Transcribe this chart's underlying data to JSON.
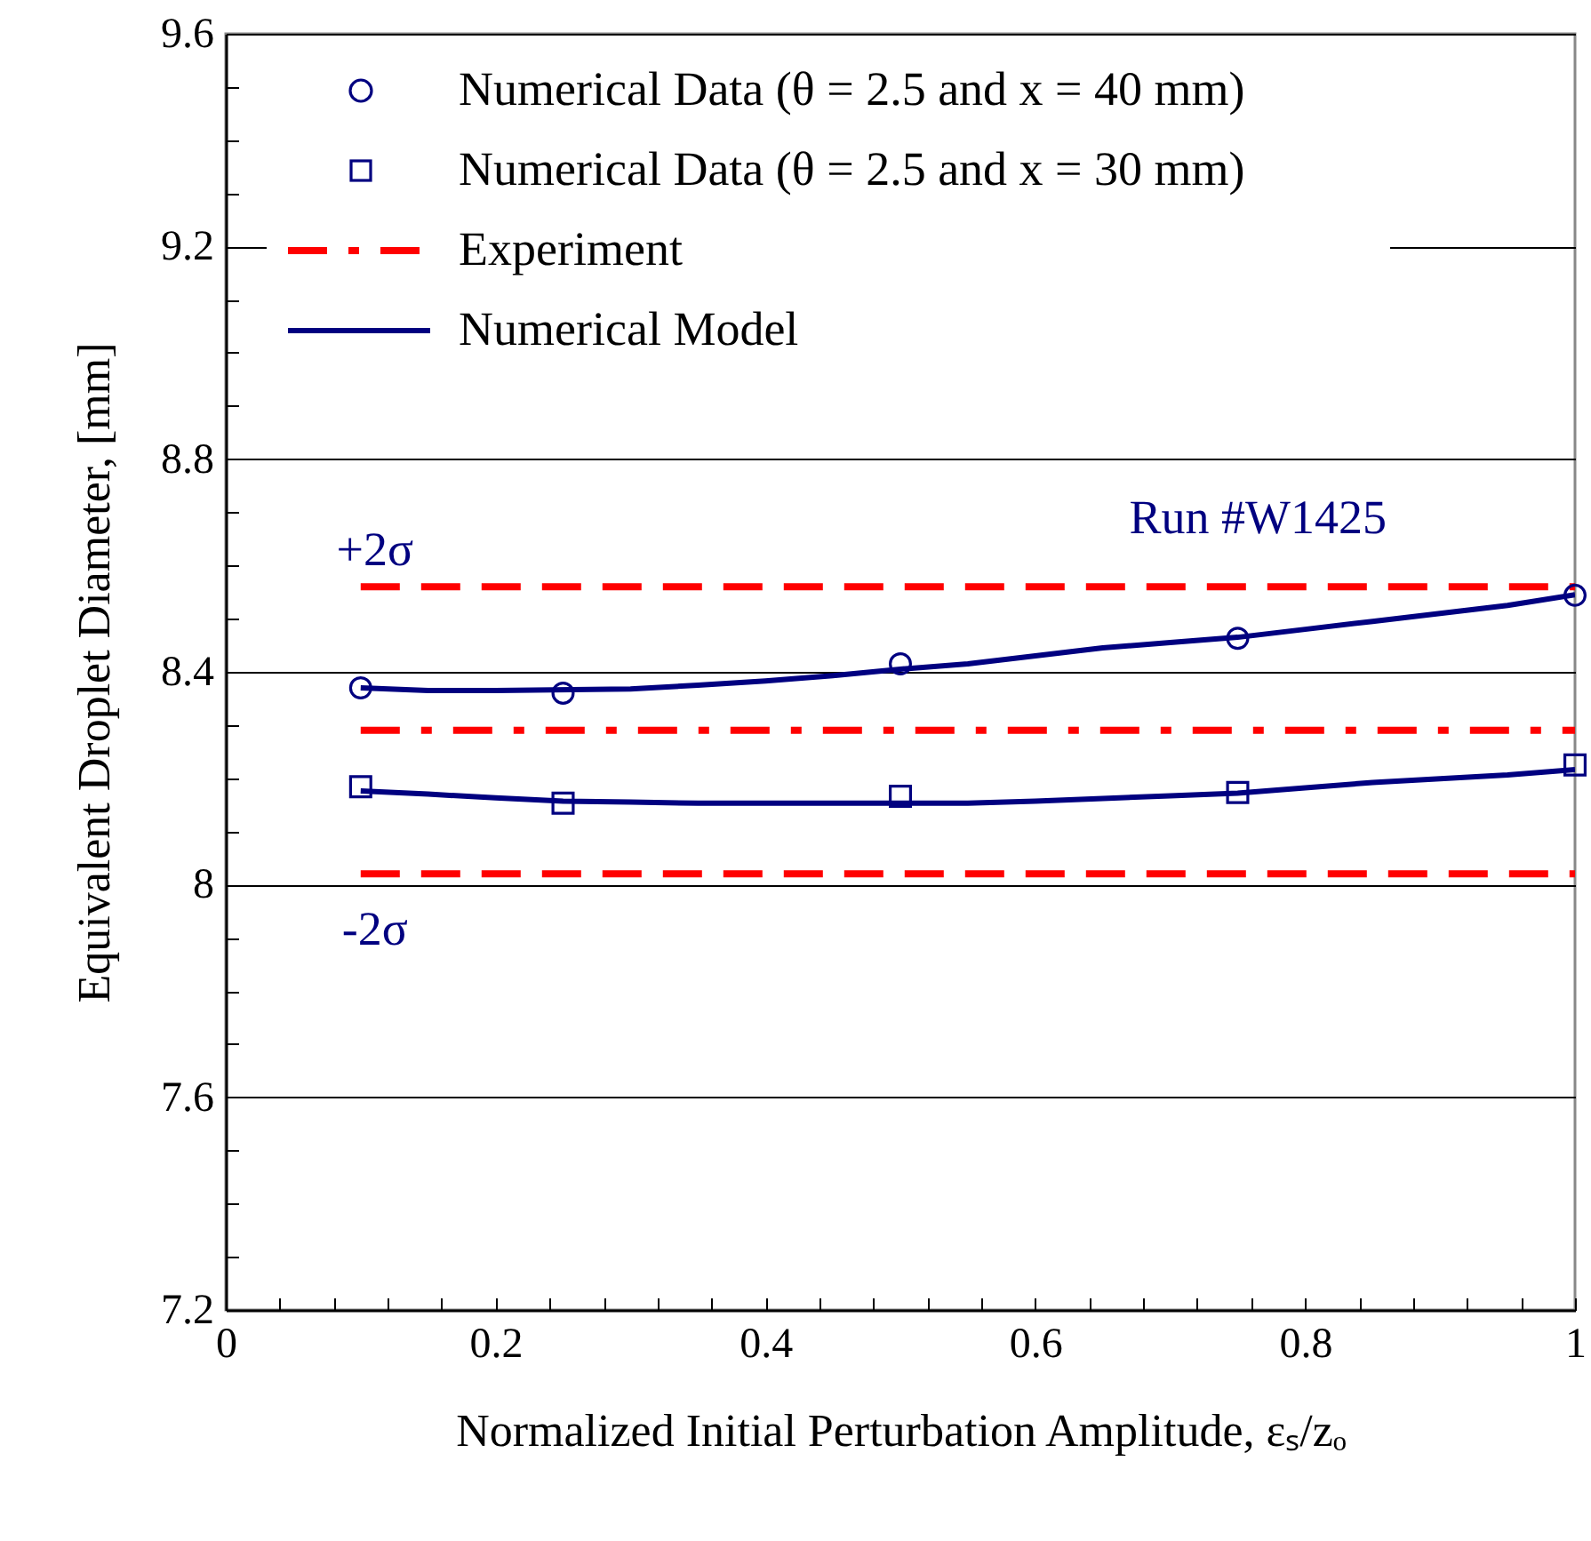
{
  "chart_data": {
    "type": "line",
    "xlabel": "Normalized Initial Perturbation Amplitude, εₛ/zₒ",
    "ylabel": "Equivalent Droplet Diameter, [mm]",
    "xlim": [
      0,
      1
    ],
    "ylim": [
      7.2,
      9.6
    ],
    "xticks": [
      0,
      {
        "value": 0.04,
        "label": null
      },
      {
        "value": 0.08,
        "label": null
      },
      {
        "value": 0.12,
        "label": null
      },
      {
        "value": 0.16,
        "label": null
      },
      0.2,
      {
        "value": 0.24,
        "label": null
      },
      {
        "value": 0.28,
        "label": null
      },
      {
        "value": 0.32,
        "label": null
      },
      {
        "value": 0.36,
        "label": null
      },
      0.4,
      {
        "value": 0.44,
        "label": null
      },
      {
        "value": 0.48,
        "label": null
      },
      {
        "value": 0.52,
        "label": null
      },
      {
        "value": 0.56,
        "label": null
      },
      0.6,
      {
        "value": 0.64,
        "label": null
      },
      {
        "value": 0.68,
        "label": null
      },
      {
        "value": 0.72,
        "label": null
      },
      {
        "value": 0.76,
        "label": null
      },
      0.8,
      {
        "value": 0.84,
        "label": null
      },
      {
        "value": 0.88,
        "label": null
      },
      {
        "value": 0.92,
        "label": null
      },
      {
        "value": 0.96,
        "label": null
      },
      1
    ],
    "yticks": [
      7.2,
      {
        "value": 7.3,
        "label": null
      },
      {
        "value": 7.4,
        "label": null
      },
      {
        "value": 7.5,
        "label": null
      },
      7.6,
      {
        "value": 7.7,
        "label": null
      },
      {
        "value": 7.8,
        "label": null
      },
      {
        "value": 7.9,
        "label": null
      },
      8,
      {
        "value": 8.1,
        "label": null
      },
      {
        "value": 8.2,
        "label": null
      },
      {
        "value": 8.3,
        "label": null
      },
      8.4,
      {
        "value": 8.5,
        "label": null
      },
      {
        "value": 8.6,
        "label": null
      },
      {
        "value": 8.7,
        "label": null
      },
      8.8,
      {
        "value": 8.9,
        "label": null
      },
      {
        "value": 9.0,
        "label": null
      },
      {
        "value": 9.1,
        "label": null
      },
      9.2,
      {
        "value": 9.3,
        "label": null
      },
      {
        "value": 9.4,
        "label": null
      },
      {
        "value": 9.5,
        "label": null
      },
      9.6
    ],
    "grid": "y",
    "legend": "top left",
    "series": [
      {
        "name": "Numerical Data (θ = 2.5 and x = 40 mm)",
        "type": "scatter",
        "marker": "circle",
        "color": "#000080",
        "x": [
          0.1,
          0.25,
          0.5,
          0.75,
          1
        ],
        "values": [
          8.37,
          8.36,
          8.415,
          8.463,
          8.544
        ]
      },
      {
        "name": "Numerical Data (θ = 2.5 and x = 30 mm)",
        "type": "scatter",
        "marker": "square",
        "color": "#000080",
        "x": [
          0.1,
          0.25,
          0.5,
          0.75,
          1
        ],
        "values": [
          8.184,
          8.153,
          8.166,
          8.173,
          8.225
        ]
      },
      {
        "name": "Experiment",
        "type": "line",
        "line_style": "dashdot",
        "color": "#ff0000",
        "x": [
          0.1,
          1
        ],
        "values": [
          8.29,
          8.29
        ]
      },
      {
        "type": "line",
        "line_style": "dashed",
        "color": "#ff0000",
        "x": [
          0.1,
          1
        ],
        "values": [
          8.56,
          8.56
        ]
      },
      {
        "type": "line",
        "line_style": "dashed",
        "color": "#ff0000",
        "x": [
          0.1,
          1
        ],
        "values": [
          8.02,
          8.02
        ]
      },
      {
        "name": "Numerical Model",
        "type": "line",
        "line_style": "solid",
        "color": "#000080",
        "x": [
          0.1,
          0.15,
          0.2,
          0.3,
          0.35,
          0.4,
          0.45,
          0.5,
          0.55,
          0.6,
          0.65,
          0.7,
          0.75,
          0.8,
          0.85,
          0.9,
          0.95,
          1
        ],
        "values": [
          8.37,
          8.365,
          8.365,
          8.368,
          8.375,
          8.383,
          8.393,
          8.405,
          8.415,
          8.43,
          8.445,
          8.455,
          8.465,
          8.48,
          8.495,
          8.51,
          8.525,
          8.545
        ]
      },
      {
        "type": "line",
        "line_style": "solid",
        "color": "#000080",
        "x": [
          0.1,
          0.15,
          0.2,
          0.25,
          0.3,
          0.35,
          0.4,
          0.45,
          0.5,
          0.55,
          0.6,
          0.65,
          0.7,
          0.75,
          0.8,
          0.85,
          0.9,
          0.95,
          1
        ],
        "values": [
          8.176,
          8.17,
          8.163,
          8.157,
          8.155,
          8.153,
          8.153,
          8.153,
          8.153,
          8.153,
          8.157,
          8.162,
          8.167,
          8.172,
          8.182,
          8.192,
          8.199,
          8.206,
          8.216
        ]
      }
    ],
    "annotations": [
      {
        "text": "+2σ",
        "x": 0.1,
        "y": 8.56
      },
      {
        "text": "-2σ",
        "x": 0.1,
        "y": 8.02
      },
      "Run #W1425"
    ]
  }
}
